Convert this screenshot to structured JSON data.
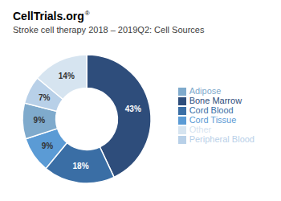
{
  "chart_data": {
    "type": "pie",
    "title": "CellTrials.org",
    "subtitle": "Stroke cell therapy 2018 – 2019Q2: Cell Sources",
    "annotations": [
      "®"
    ],
    "categories": [
      "Bone Marrow",
      "Cord Blood",
      "Cord Tissue",
      "Adipose",
      "Peripheral Blood",
      "Other"
    ],
    "values": [
      43,
      18,
      9,
      9,
      7,
      14
    ],
    "value_labels": [
      "43%",
      "18%",
      "9%",
      "9%",
      "7%",
      "14%"
    ],
    "colors": [
      "#2E4D7B",
      "#3A6EA5",
      "#5B9BD5",
      "#7FAACC",
      "#B8D0E8",
      "#D6E4F0"
    ],
    "data_labels": true,
    "legend": "right"
  }
}
